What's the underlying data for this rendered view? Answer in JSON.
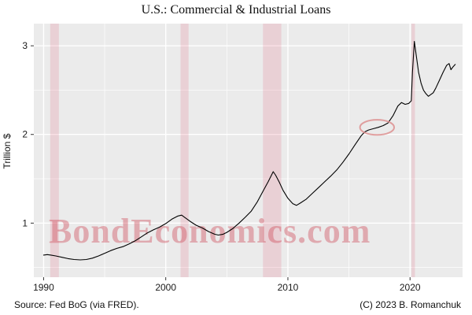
{
  "chart_data": {
    "type": "line",
    "title": "U.S.: Commercial & Industrial Loans",
    "ylabel": "Trillion $",
    "watermark": "BondEconomics.com",
    "source_left": "Source: Fed BoG (via FRED).",
    "source_right": "(C) 2023 B. Romanchuk",
    "xlim": [
      1989.2,
      2024.3
    ],
    "ylim": [
      0.39,
      3.25
    ],
    "x_ticks": [
      1990,
      2000,
      2010,
      2020
    ],
    "x_minor": [
      1995,
      2005,
      2015
    ],
    "y_ticks": [
      1,
      2,
      3
    ],
    "y_minor": [
      0.5,
      1.5,
      2.5
    ],
    "grid": true,
    "legend": "none",
    "recession_bands": [
      [
        1990.54,
        1991.25
      ],
      [
        2001.21,
        2001.87
      ],
      [
        2007.96,
        2009.46
      ],
      [
        2020.12,
        2020.4
      ]
    ],
    "colors": {
      "panel": "#ebebeb",
      "grid": "#ffffff",
      "line": "#000000",
      "recession": "rgba(225,70,100,0.16)",
      "watermark": "rgba(205,62,78,0.38)",
      "annotation": "#dd8f8f",
      "tick": "#333333",
      "text": "#1a1a1a"
    },
    "annotation_ellipse": {
      "x": 2017.3,
      "y": 2.08,
      "rx": 1.4,
      "ry": 0.085
    },
    "series": [
      {
        "name": "Commercial & Industrial Loans",
        "points": [
          [
            1990.0,
            0.64
          ],
          [
            1990.3,
            0.645
          ],
          [
            1990.6,
            0.64
          ],
          [
            1991.0,
            0.63
          ],
          [
            1991.5,
            0.615
          ],
          [
            1992.0,
            0.6
          ],
          [
            1992.5,
            0.59
          ],
          [
            1993.0,
            0.585
          ],
          [
            1993.5,
            0.59
          ],
          [
            1994.0,
            0.605
          ],
          [
            1994.5,
            0.63
          ],
          [
            1995.0,
            0.66
          ],
          [
            1995.5,
            0.69
          ],
          [
            1996.0,
            0.715
          ],
          [
            1996.5,
            0.735
          ],
          [
            1997.0,
            0.765
          ],
          [
            1997.5,
            0.8
          ],
          [
            1998.0,
            0.845
          ],
          [
            1998.5,
            0.89
          ],
          [
            1999.0,
            0.925
          ],
          [
            1999.5,
            0.955
          ],
          [
            2000.0,
            0.995
          ],
          [
            2000.5,
            1.045
          ],
          [
            2001.0,
            1.08
          ],
          [
            2001.3,
            1.09
          ],
          [
            2001.6,
            1.06
          ],
          [
            2002.0,
            1.02
          ],
          [
            2002.5,
            0.975
          ],
          [
            2003.0,
            0.945
          ],
          [
            2003.5,
            0.905
          ],
          [
            2004.0,
            0.875
          ],
          [
            2004.3,
            0.865
          ],
          [
            2004.7,
            0.875
          ],
          [
            2005.0,
            0.895
          ],
          [
            2005.5,
            0.94
          ],
          [
            2006.0,
            1.0
          ],
          [
            2006.5,
            1.065
          ],
          [
            2007.0,
            1.135
          ],
          [
            2007.5,
            1.24
          ],
          [
            2008.0,
            1.37
          ],
          [
            2008.4,
            1.47
          ],
          [
            2008.8,
            1.58
          ],
          [
            2009.0,
            1.54
          ],
          [
            2009.3,
            1.46
          ],
          [
            2009.6,
            1.37
          ],
          [
            2010.0,
            1.28
          ],
          [
            2010.4,
            1.22
          ],
          [
            2010.7,
            1.2
          ],
          [
            2011.0,
            1.225
          ],
          [
            2011.5,
            1.27
          ],
          [
            2012.0,
            1.335
          ],
          [
            2012.5,
            1.4
          ],
          [
            2013.0,
            1.465
          ],
          [
            2013.5,
            1.53
          ],
          [
            2014.0,
            1.6
          ],
          [
            2014.5,
            1.685
          ],
          [
            2015.0,
            1.78
          ],
          [
            2015.5,
            1.885
          ],
          [
            2016.0,
            1.985
          ],
          [
            2016.3,
            2.03
          ],
          [
            2016.6,
            2.05
          ],
          [
            2017.0,
            2.065
          ],
          [
            2017.4,
            2.08
          ],
          [
            2017.8,
            2.1
          ],
          [
            2018.2,
            2.13
          ],
          [
            2018.6,
            2.21
          ],
          [
            2019.0,
            2.32
          ],
          [
            2019.3,
            2.36
          ],
          [
            2019.6,
            2.34
          ],
          [
            2019.9,
            2.35
          ],
          [
            2020.1,
            2.38
          ],
          [
            2020.2,
            2.7
          ],
          [
            2020.35,
            3.05
          ],
          [
            2020.5,
            2.9
          ],
          [
            2020.7,
            2.7
          ],
          [
            2020.9,
            2.58
          ],
          [
            2021.1,
            2.5
          ],
          [
            2021.3,
            2.46
          ],
          [
            2021.5,
            2.43
          ],
          [
            2021.7,
            2.45
          ],
          [
            2021.9,
            2.47
          ],
          [
            2022.1,
            2.52
          ],
          [
            2022.4,
            2.61
          ],
          [
            2022.7,
            2.7
          ],
          [
            2023.0,
            2.78
          ],
          [
            2023.2,
            2.8
          ],
          [
            2023.35,
            2.73
          ],
          [
            2023.5,
            2.76
          ],
          [
            2023.7,
            2.79
          ]
        ]
      }
    ]
  }
}
